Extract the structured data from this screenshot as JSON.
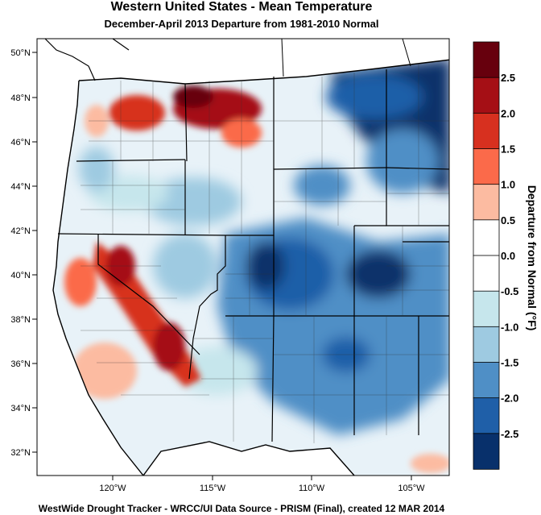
{
  "title": "Western United States - Mean Temperature",
  "subtitle": "December-April 2013  Departure from 1981-2010 Normal",
  "footer": "WestWide Drought Tracker - WRCC/UI  Data Source - PRISM (Final), created 12 MAR 2014",
  "lat_labels": [
    "50°N",
    "48°N",
    "46°N",
    "44°N",
    "42°N",
    "40°N",
    "38°N",
    "36°N",
    "34°N",
    "32°N"
  ],
  "lon_labels": [
    "120°W",
    "115°W",
    "110°W",
    "105°W"
  ],
  "colorbar": {
    "title": "Departure from Normal (°F)",
    "labels": [
      "2.5",
      "2.0",
      "1.5",
      "1.0",
      "0.5",
      "0.0",
      "-0.5",
      "-1.0",
      "-1.5",
      "-2.0",
      "-2.5"
    ],
    "colors": [
      "#67000d",
      "#a50f15",
      "#d7301f",
      "#fb6a4a",
      "#fcbba1",
      "#ffffff",
      "#ffffff",
      "#c6e6ec",
      "#9ecae1",
      "#4f8fc6",
      "#1f5fa8",
      "#08306b"
    ]
  },
  "colors": {
    "warm": "#d7301f",
    "cool": "#1f5fa8"
  }
}
